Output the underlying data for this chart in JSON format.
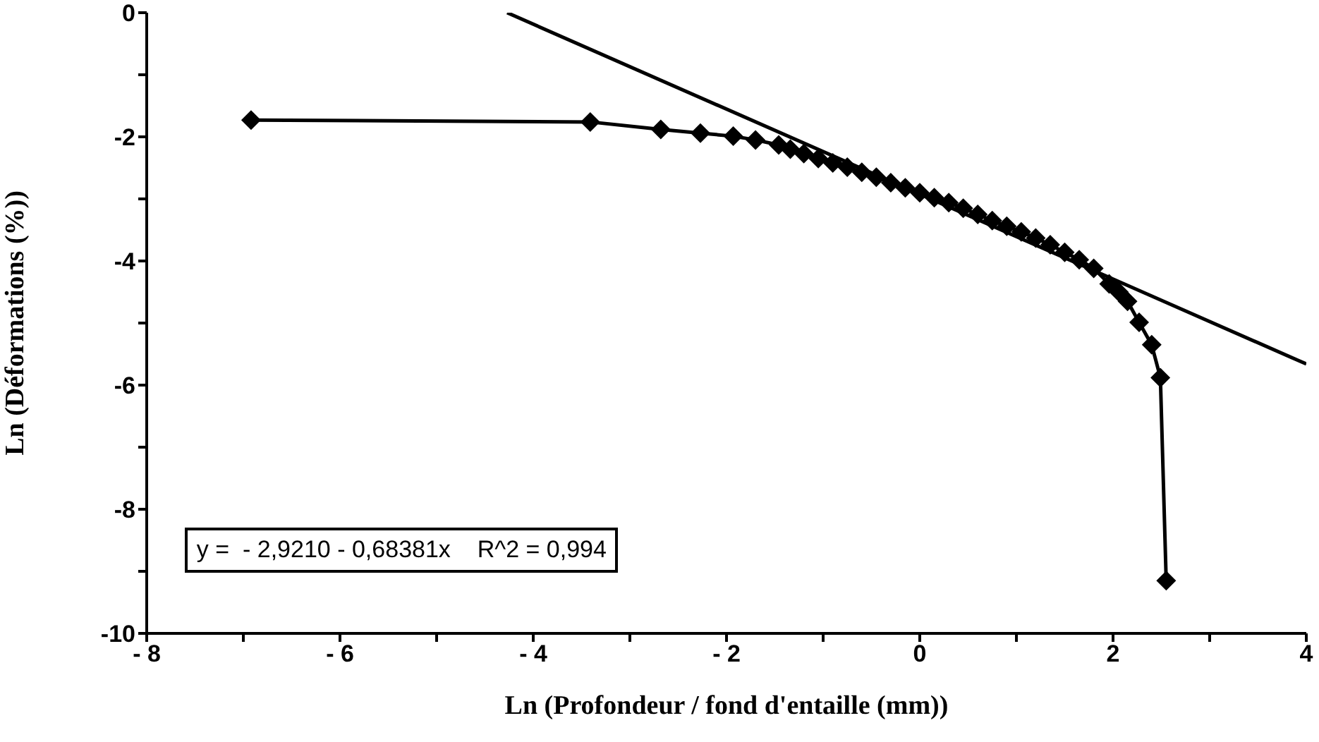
{
  "chart_data": {
    "type": "line",
    "xlabel": "Ln (Profondeur / fond d'entaille (mm))",
    "ylabel": "Ln (Déformations (%))",
    "xlim": [
      -8,
      4
    ],
    "ylim": [
      -10,
      0
    ],
    "xticks": [
      {
        "value": -8,
        "label": "- 8"
      },
      {
        "value": -7,
        "label": null
      },
      {
        "value": -6,
        "label": "- 6"
      },
      {
        "value": -5,
        "label": null
      },
      {
        "value": -4,
        "label": "- 4"
      },
      {
        "value": -3,
        "label": null
      },
      {
        "value": -2,
        "label": "- 2"
      },
      {
        "value": -1,
        "label": null
      },
      0,
      {
        "value": 1,
        "label": null
      },
      2,
      {
        "value": 3,
        "label": null
      },
      4
    ],
    "yticks": [
      -10,
      {
        "value": -9,
        "label": null
      },
      -8,
      {
        "value": -7,
        "label": null
      },
      -6,
      {
        "value": -5,
        "label": null
      },
      -4,
      {
        "value": -3,
        "label": null
      },
      -2,
      {
        "value": -1,
        "label": null
      },
      0
    ],
    "line_style": "solid",
    "annotations": [
      "y =  - 2,9210 - 0,68381x    R^2 = 0,994"
    ],
    "series": [
      {
        "color": "#000000",
        "marker": "diamond",
        "x": [
          -6.92,
          -3.41,
          -2.68,
          -2.27,
          -1.93,
          -1.7,
          -1.46,
          -1.34,
          -1.2,
          -1.05,
          -0.9,
          -0.75,
          -0.6,
          -0.45,
          -0.3,
          -0.15,
          0,
          0.15,
          0.3,
          0.45,
          0.6,
          0.75,
          0.9,
          1.05,
          1.2,
          1.35,
          1.5,
          1.65,
          1.8,
          1.96,
          2.06,
          2.15,
          2.27,
          2.4,
          2.49,
          2.55
        ],
        "values": [
          -1.73,
          -1.76,
          -1.88,
          -1.94,
          -1.99,
          -2.05,
          -2.13,
          -2.2,
          -2.27,
          -2.35,
          -2.42,
          -2.49,
          -2.57,
          -2.65,
          -2.74,
          -2.82,
          -2.9,
          -2.98,
          -3.06,
          -3.15,
          -3.25,
          -3.35,
          -3.44,
          -3.53,
          -3.63,
          -3.74,
          -3.86,
          -3.98,
          -4.12,
          -4.37,
          -4.5,
          -4.65,
          -4.99,
          -5.35,
          -5.88,
          -9.15
        ]
      },
      {
        "color": "#000000",
        "marker": "none",
        "x": [
          -4.27,
          4
        ],
        "values": [
          0,
          -5.66
        ]
      }
    ]
  }
}
